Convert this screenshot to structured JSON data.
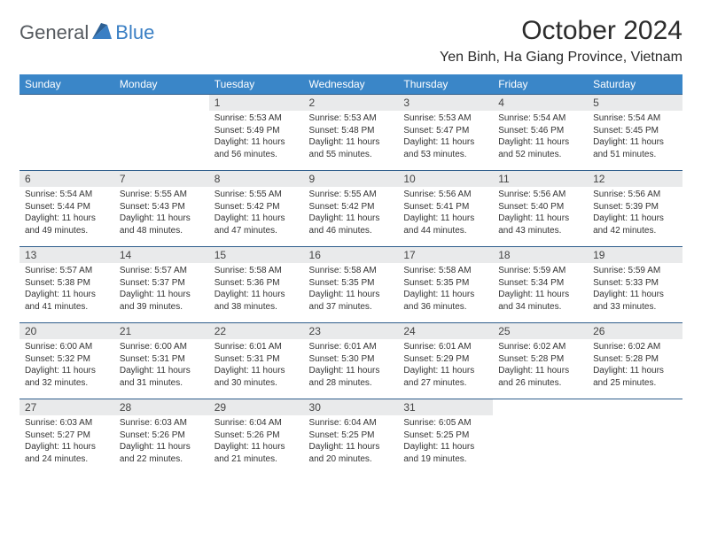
{
  "logo": {
    "text1": "General",
    "text2": "Blue"
  },
  "title": "October 2024",
  "location": "Yen Binh, Ha Giang Province, Vietnam",
  "colors": {
    "header_bg": "#3a86c8",
    "header_text": "#ffffff",
    "daynum_bg": "#e9eaeb",
    "row_border": "#2f5e8c",
    "logo_gray": "#555a5f",
    "logo_blue": "#3a7fc4",
    "body_text": "#333333",
    "page_bg": "#ffffff"
  },
  "fonts": {
    "family": "Arial",
    "title_size_pt": 22,
    "location_size_pt": 12,
    "dayheader_size_pt": 9,
    "body_size_pt": 7.5
  },
  "day_headers": [
    "Sunday",
    "Monday",
    "Tuesday",
    "Wednesday",
    "Thursday",
    "Friday",
    "Saturday"
  ],
  "weeks": [
    [
      {
        "n": "",
        "sunrise": "",
        "sunset": "",
        "daylight": ""
      },
      {
        "n": "",
        "sunrise": "",
        "sunset": "",
        "daylight": ""
      },
      {
        "n": "1",
        "sunrise": "Sunrise: 5:53 AM",
        "sunset": "Sunset: 5:49 PM",
        "daylight": "Daylight: 11 hours and 56 minutes."
      },
      {
        "n": "2",
        "sunrise": "Sunrise: 5:53 AM",
        "sunset": "Sunset: 5:48 PM",
        "daylight": "Daylight: 11 hours and 55 minutes."
      },
      {
        "n": "3",
        "sunrise": "Sunrise: 5:53 AM",
        "sunset": "Sunset: 5:47 PM",
        "daylight": "Daylight: 11 hours and 53 minutes."
      },
      {
        "n": "4",
        "sunrise": "Sunrise: 5:54 AM",
        "sunset": "Sunset: 5:46 PM",
        "daylight": "Daylight: 11 hours and 52 minutes."
      },
      {
        "n": "5",
        "sunrise": "Sunrise: 5:54 AM",
        "sunset": "Sunset: 5:45 PM",
        "daylight": "Daylight: 11 hours and 51 minutes."
      }
    ],
    [
      {
        "n": "6",
        "sunrise": "Sunrise: 5:54 AM",
        "sunset": "Sunset: 5:44 PM",
        "daylight": "Daylight: 11 hours and 49 minutes."
      },
      {
        "n": "7",
        "sunrise": "Sunrise: 5:55 AM",
        "sunset": "Sunset: 5:43 PM",
        "daylight": "Daylight: 11 hours and 48 minutes."
      },
      {
        "n": "8",
        "sunrise": "Sunrise: 5:55 AM",
        "sunset": "Sunset: 5:42 PM",
        "daylight": "Daylight: 11 hours and 47 minutes."
      },
      {
        "n": "9",
        "sunrise": "Sunrise: 5:55 AM",
        "sunset": "Sunset: 5:42 PM",
        "daylight": "Daylight: 11 hours and 46 minutes."
      },
      {
        "n": "10",
        "sunrise": "Sunrise: 5:56 AM",
        "sunset": "Sunset: 5:41 PM",
        "daylight": "Daylight: 11 hours and 44 minutes."
      },
      {
        "n": "11",
        "sunrise": "Sunrise: 5:56 AM",
        "sunset": "Sunset: 5:40 PM",
        "daylight": "Daylight: 11 hours and 43 minutes."
      },
      {
        "n": "12",
        "sunrise": "Sunrise: 5:56 AM",
        "sunset": "Sunset: 5:39 PM",
        "daylight": "Daylight: 11 hours and 42 minutes."
      }
    ],
    [
      {
        "n": "13",
        "sunrise": "Sunrise: 5:57 AM",
        "sunset": "Sunset: 5:38 PM",
        "daylight": "Daylight: 11 hours and 41 minutes."
      },
      {
        "n": "14",
        "sunrise": "Sunrise: 5:57 AM",
        "sunset": "Sunset: 5:37 PM",
        "daylight": "Daylight: 11 hours and 39 minutes."
      },
      {
        "n": "15",
        "sunrise": "Sunrise: 5:58 AM",
        "sunset": "Sunset: 5:36 PM",
        "daylight": "Daylight: 11 hours and 38 minutes."
      },
      {
        "n": "16",
        "sunrise": "Sunrise: 5:58 AM",
        "sunset": "Sunset: 5:35 PM",
        "daylight": "Daylight: 11 hours and 37 minutes."
      },
      {
        "n": "17",
        "sunrise": "Sunrise: 5:58 AM",
        "sunset": "Sunset: 5:35 PM",
        "daylight": "Daylight: 11 hours and 36 minutes."
      },
      {
        "n": "18",
        "sunrise": "Sunrise: 5:59 AM",
        "sunset": "Sunset: 5:34 PM",
        "daylight": "Daylight: 11 hours and 34 minutes."
      },
      {
        "n": "19",
        "sunrise": "Sunrise: 5:59 AM",
        "sunset": "Sunset: 5:33 PM",
        "daylight": "Daylight: 11 hours and 33 minutes."
      }
    ],
    [
      {
        "n": "20",
        "sunrise": "Sunrise: 6:00 AM",
        "sunset": "Sunset: 5:32 PM",
        "daylight": "Daylight: 11 hours and 32 minutes."
      },
      {
        "n": "21",
        "sunrise": "Sunrise: 6:00 AM",
        "sunset": "Sunset: 5:31 PM",
        "daylight": "Daylight: 11 hours and 31 minutes."
      },
      {
        "n": "22",
        "sunrise": "Sunrise: 6:01 AM",
        "sunset": "Sunset: 5:31 PM",
        "daylight": "Daylight: 11 hours and 30 minutes."
      },
      {
        "n": "23",
        "sunrise": "Sunrise: 6:01 AM",
        "sunset": "Sunset: 5:30 PM",
        "daylight": "Daylight: 11 hours and 28 minutes."
      },
      {
        "n": "24",
        "sunrise": "Sunrise: 6:01 AM",
        "sunset": "Sunset: 5:29 PM",
        "daylight": "Daylight: 11 hours and 27 minutes."
      },
      {
        "n": "25",
        "sunrise": "Sunrise: 6:02 AM",
        "sunset": "Sunset: 5:28 PM",
        "daylight": "Daylight: 11 hours and 26 minutes."
      },
      {
        "n": "26",
        "sunrise": "Sunrise: 6:02 AM",
        "sunset": "Sunset: 5:28 PM",
        "daylight": "Daylight: 11 hours and 25 minutes."
      }
    ],
    [
      {
        "n": "27",
        "sunrise": "Sunrise: 6:03 AM",
        "sunset": "Sunset: 5:27 PM",
        "daylight": "Daylight: 11 hours and 24 minutes."
      },
      {
        "n": "28",
        "sunrise": "Sunrise: 6:03 AM",
        "sunset": "Sunset: 5:26 PM",
        "daylight": "Daylight: 11 hours and 22 minutes."
      },
      {
        "n": "29",
        "sunrise": "Sunrise: 6:04 AM",
        "sunset": "Sunset: 5:26 PM",
        "daylight": "Daylight: 11 hours and 21 minutes."
      },
      {
        "n": "30",
        "sunrise": "Sunrise: 6:04 AM",
        "sunset": "Sunset: 5:25 PM",
        "daylight": "Daylight: 11 hours and 20 minutes."
      },
      {
        "n": "31",
        "sunrise": "Sunrise: 6:05 AM",
        "sunset": "Sunset: 5:25 PM",
        "daylight": "Daylight: 11 hours and 19 minutes."
      },
      {
        "n": "",
        "sunrise": "",
        "sunset": "",
        "daylight": ""
      },
      {
        "n": "",
        "sunrise": "",
        "sunset": "",
        "daylight": ""
      }
    ]
  ]
}
